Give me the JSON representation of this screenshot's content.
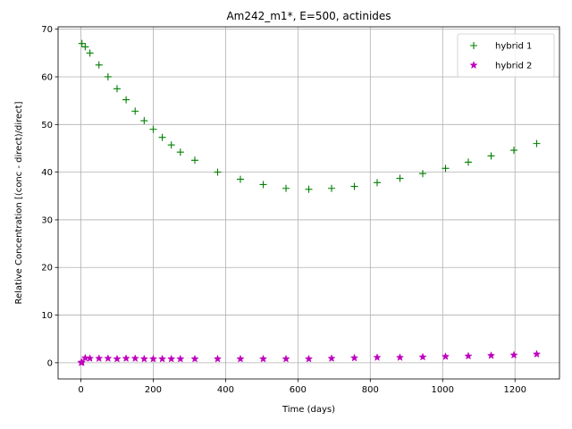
{
  "chart_data": {
    "type": "scatter",
    "title": "Am242_m1*, E=500, actinides",
    "xlabel": "Time (days)",
    "ylabel": "Relative Concentration [(conc - direct)/direct]",
    "xlim": [
      -63,
      1323
    ],
    "ylim": [
      -3.4,
      70.5
    ],
    "xticks": [
      0,
      200,
      400,
      600,
      800,
      1000,
      1200
    ],
    "yticks": [
      0,
      10,
      20,
      30,
      40,
      50,
      60,
      70
    ],
    "grid": true,
    "legend_position": "top-right",
    "series": [
      {
        "name": "hybrid 1",
        "marker": "plus",
        "color": "#008000",
        "x": [
          3,
          12,
          25,
          50,
          75,
          100,
          125,
          150,
          175,
          200,
          225,
          250,
          275,
          315,
          378,
          441,
          504,
          567,
          630,
          693,
          756,
          819,
          882,
          945,
          1008,
          1071,
          1134,
          1197,
          1260
        ],
        "y": [
          67,
          66.3,
          65,
          62.5,
          60,
          57.5,
          55.2,
          52.8,
          50.8,
          49,
          47.3,
          45.7,
          44.2,
          42.5,
          40,
          38.5,
          37.4,
          36.6,
          36.4,
          36.6,
          37,
          37.8,
          38.7,
          39.7,
          40.8,
          42.1,
          43.4,
          44.6,
          46
        ]
      },
      {
        "name": "hybrid 2",
        "marker": "star",
        "color": "#bf00bf",
        "x": [
          1,
          3,
          12,
          25,
          50,
          75,
          100,
          125,
          150,
          175,
          200,
          225,
          250,
          275,
          315,
          378,
          441,
          504,
          567,
          630,
          693,
          756,
          819,
          882,
          945,
          1008,
          1071,
          1134,
          1197,
          1260
        ],
        "y": [
          0,
          0.1,
          1,
          0.9,
          0.9,
          0.9,
          0.8,
          0.9,
          0.9,
          0.8,
          0.8,
          0.8,
          0.8,
          0.8,
          0.8,
          0.8,
          0.8,
          0.8,
          0.8,
          0.8,
          0.9,
          1,
          1.1,
          1.1,
          1.2,
          1.3,
          1.4,
          1.5,
          1.6,
          1.8
        ]
      }
    ]
  }
}
